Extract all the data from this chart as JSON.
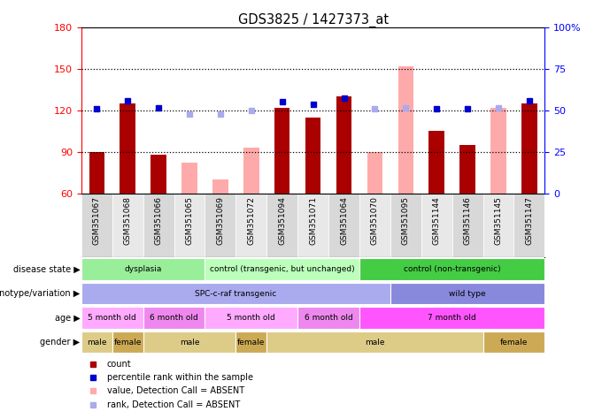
{
  "title": "GDS3825 / 1427373_at",
  "samples": [
    "GSM351067",
    "GSM351068",
    "GSM351066",
    "GSM351065",
    "GSM351069",
    "GSM351072",
    "GSM351094",
    "GSM351071",
    "GSM351064",
    "GSM351070",
    "GSM351095",
    "GSM351144",
    "GSM351146",
    "GSM351145",
    "GSM351147"
  ],
  "bar_values": [
    90,
    125,
    88,
    null,
    null,
    null,
    122,
    115,
    130,
    null,
    null,
    105,
    95,
    null,
    125
  ],
  "bar_absent": [
    null,
    null,
    null,
    82,
    70,
    93,
    null,
    null,
    null,
    90,
    152,
    null,
    null,
    122,
    null
  ],
  "rank_values": [
    121,
    127,
    122,
    null,
    null,
    null,
    126,
    124,
    129,
    null,
    null,
    121,
    121,
    null,
    127
  ],
  "rank_absent": [
    null,
    null,
    null,
    117,
    117,
    120,
    null,
    null,
    null,
    121,
    122,
    null,
    null,
    122,
    null
  ],
  "ylim": [
    60,
    180
  ],
  "yticks": [
    60,
    90,
    120,
    150,
    180
  ],
  "right_ytick_labels": [
    "0",
    "25",
    "50",
    "75",
    "100%"
  ],
  "bar_color": "#aa0000",
  "absent_bar_color": "#ffaaaa",
  "rank_color": "#0000cc",
  "rank_absent_color": "#aaaaee",
  "bg_color": "#ffffff",
  "col_bg_even": "#d8d8d8",
  "col_bg_odd": "#e8e8e8",
  "disease_state_groups": [
    {
      "label": "dysplasia",
      "start": 0,
      "end": 4,
      "color": "#99ee99"
    },
    {
      "label": "control (transgenic, but unchanged)",
      "start": 4,
      "end": 9,
      "color": "#bbffbb"
    },
    {
      "label": "control (non-transgenic)",
      "start": 9,
      "end": 15,
      "color": "#44cc44"
    }
  ],
  "genotype_groups": [
    {
      "label": "SPC-c-raf transgenic",
      "start": 0,
      "end": 10,
      "color": "#aaaaee"
    },
    {
      "label": "wild type",
      "start": 10,
      "end": 15,
      "color": "#8888dd"
    }
  ],
  "age_groups": [
    {
      "label": "5 month old",
      "start": 0,
      "end": 2,
      "color": "#ffaaff"
    },
    {
      "label": "6 month old",
      "start": 2,
      "end": 4,
      "color": "#ee88ee"
    },
    {
      "label": "5 month old",
      "start": 4,
      "end": 7,
      "color": "#ffaaff"
    },
    {
      "label": "6 month old",
      "start": 7,
      "end": 9,
      "color": "#ee88ee"
    },
    {
      "label": "7 month old",
      "start": 9,
      "end": 15,
      "color": "#ff55ff"
    }
  ],
  "gender_groups": [
    {
      "label": "male",
      "start": 0,
      "end": 1,
      "color": "#ddcc88"
    },
    {
      "label": "female",
      "start": 1,
      "end": 2,
      "color": "#ccaa55"
    },
    {
      "label": "male",
      "start": 2,
      "end": 5,
      "color": "#ddcc88"
    },
    {
      "label": "female",
      "start": 5,
      "end": 6,
      "color": "#ccaa55"
    },
    {
      "label": "male",
      "start": 6,
      "end": 13,
      "color": "#ddcc88"
    },
    {
      "label": "female",
      "start": 13,
      "end": 15,
      "color": "#ccaa55"
    }
  ],
  "legend_items": [
    {
      "label": "count",
      "color": "#aa0000"
    },
    {
      "label": "percentile rank within the sample",
      "color": "#0000cc"
    },
    {
      "label": "value, Detection Call = ABSENT",
      "color": "#ffaaaa"
    },
    {
      "label": "rank, Detection Call = ABSENT",
      "color": "#aaaaee"
    }
  ]
}
